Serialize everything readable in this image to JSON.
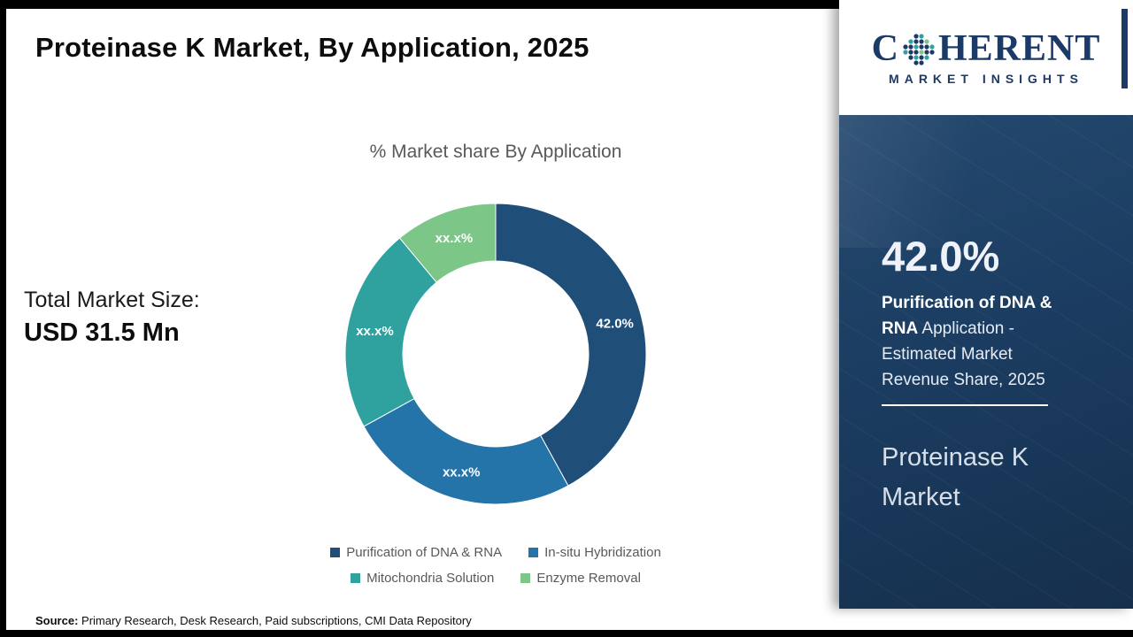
{
  "page": {
    "title": "Proteinase K Market, By Application, 2025",
    "source": {
      "label": "Source:",
      "text": " Primary Research, Desk Research, Paid subscriptions, CMI Data Repository"
    }
  },
  "left_panel": {
    "total_label": "Total Market Size:",
    "total_value": "USD 31.5 Mn"
  },
  "chart_data": {
    "type": "pie",
    "donut": true,
    "title": "% Market share By Application",
    "legend_position": "bottom",
    "segments": [
      {
        "name": "Purification of DNA & RNA",
        "value": 42.0,
        "label": "42.0%",
        "color": "#1F4E79"
      },
      {
        "name": "In-situ Hybridization",
        "value": 25.0,
        "label": "xx.x%",
        "color": "#2574A9"
      },
      {
        "name": "Mitochondria Solution",
        "value": 22.0,
        "label": "xx.x%",
        "color": "#2FA2A0"
      },
      {
        "name": "Enzyme Removal",
        "value": 11.0,
        "label": "xx.x%",
        "color": "#7CC688"
      }
    ]
  },
  "logo": {
    "word_start": "C",
    "word_end": "HERENT",
    "subtitle": "MARKET INSIGHTS",
    "globe_icon": "dot-globe-icon"
  },
  "right_panel": {
    "stat_value": "42.0%",
    "desc_bold": "Purification of DNA & RNA",
    "desc_rest": " Application - Estimated Market Revenue Share, 2025",
    "panel_title": "Proteinase K Market"
  },
  "colors": {
    "brand_navy": "#1C3A68",
    "brand_teal": "#2FA2A0",
    "panel_bg": "#1C3E63",
    "accent_green": "#7CC688"
  }
}
